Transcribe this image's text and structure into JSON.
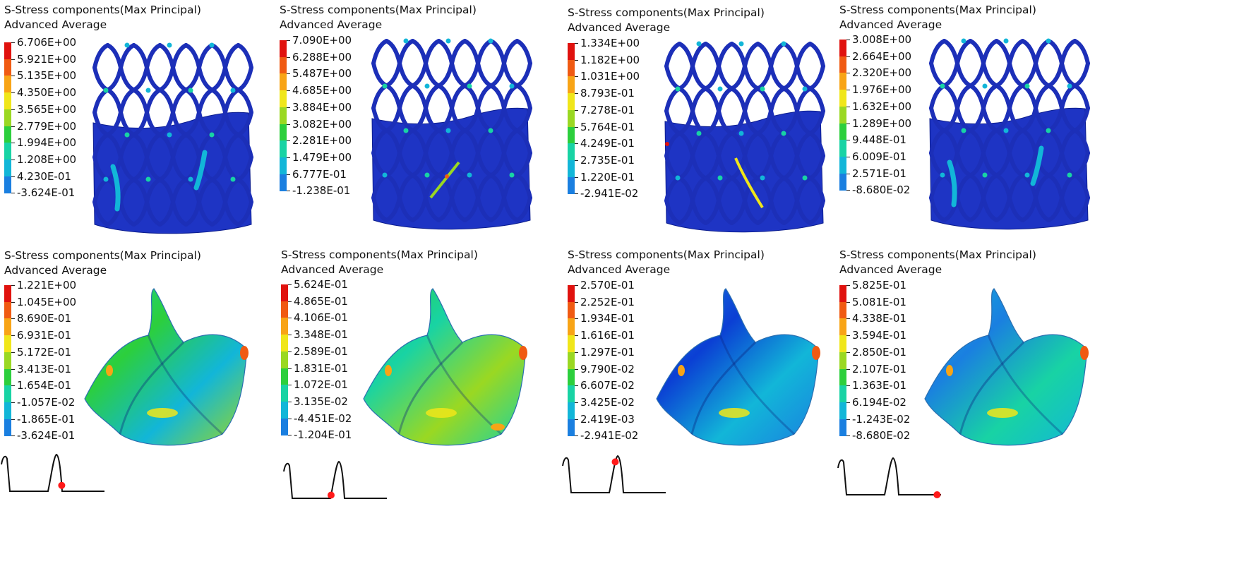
{
  "colors": {
    "contour": [
      "#0a14a8",
      "#0b3fd4",
      "#1a7fe0",
      "#12b6d8",
      "#18d3a4",
      "#2ccf3c",
      "#9ad822",
      "#f0e61a",
      "#f8a416",
      "#f05a12",
      "#e0120e"
    ],
    "stent_base": "#1c2fb8",
    "skirt_base": "#1e34c4",
    "marker": "#ff1a1a"
  },
  "panels": [
    {
      "title": "S-Stress components(Max Principal)",
      "subtitle": "Advanced Average",
      "scale": [
        "6.706E+00",
        "5.921E+00",
        "5.135E+00",
        "4.350E+00",
        "3.565E+00",
        "2.779E+00",
        "1.994E+00",
        "1.208E+00",
        "4.230E-01",
        "-3.624E-01"
      ]
    },
    {
      "title": "S-Stress components(Max Principal)",
      "subtitle": "Advanced Average",
      "scale": [
        "7.090E+00",
        "6.288E+00",
        "5.487E+00",
        "4.685E+00",
        "3.884E+00",
        "3.082E+00",
        "2.281E+00",
        "1.479E+00",
        "6.777E-01",
        "-1.238E-01"
      ]
    },
    {
      "title": "S-Stress components(Max Principal)",
      "subtitle": "Advanced Average",
      "scale": [
        "1.334E+00",
        "1.182E+00",
        "1.031E+00",
        "8.793E-01",
        "7.278E-01",
        "5.764E-01",
        "4.249E-01",
        "2.735E-01",
        "1.220E-01",
        "-2.941E-02"
      ]
    },
    {
      "title": "S-Stress components(Max Principal)",
      "subtitle": "Advanced Average",
      "scale": [
        "3.008E+00",
        "2.664E+00",
        "2.320E+00",
        "1.976E+00",
        "1.632E+00",
        "1.289E+00",
        "9.448E-01",
        "6.009E-01",
        "2.571E-01",
        "-8.680E-02"
      ]
    },
    {
      "title": "S-Stress components(Max Principal)",
      "subtitle": "Advanced Average",
      "scale": [
        "1.221E+00",
        "1.045E+00",
        "8.690E-01",
        "6.931E-01",
        "5.172E-01",
        "3.413E-01",
        "1.654E-01",
        "-1.057E-02",
        "-1.865E-01",
        "-3.624E-01"
      ]
    },
    {
      "title": "S-Stress components(Max Principal)",
      "subtitle": "Advanced Average",
      "scale": [
        "5.624E-01",
        "4.865E-01",
        "4.106E-01",
        "3.348E-01",
        "2.589E-01",
        "1.831E-01",
        "1.072E-01",
        "3.135E-02",
        "-4.451E-02",
        "-1.204E-01"
      ]
    },
    {
      "title": "S-Stress components(Max Principal)",
      "subtitle": "Advanced Average",
      "scale": [
        "2.570E-01",
        "2.252E-01",
        "1.934E-01",
        "1.616E-01",
        "1.297E-01",
        "9.790E-02",
        "6.607E-02",
        "3.425E-02",
        "2.419E-03",
        "-2.941E-02"
      ]
    },
    {
      "title": "S-Stress components(Max Principal)",
      "subtitle": "Advanced Average",
      "scale": [
        "5.825E-01",
        "5.081E-01",
        "4.338E-01",
        "3.594E-01",
        "2.850E-01",
        "2.107E-01",
        "1.363E-01",
        "6.194E-02",
        "-1.243E-02",
        "-8.680E-02"
      ]
    }
  ]
}
